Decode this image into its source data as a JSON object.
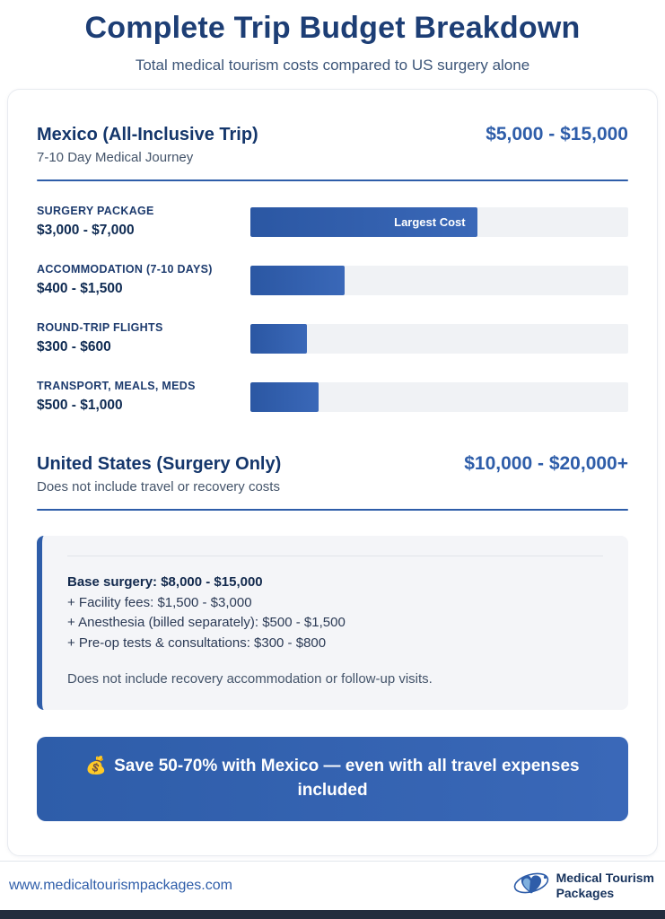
{
  "header": {
    "title": "Complete Trip Budget Breakdown",
    "subtitle": "Total medical tourism costs compared to US surgery alone"
  },
  "mexico": {
    "title": "Mexico (All-Inclusive Trip)",
    "price": "$5,000 - $15,000",
    "subtitle": "7-10 Day Medical Journey",
    "items": [
      {
        "label": "SURGERY PACKAGE",
        "value": "$3,000 - $7,000",
        "pct": 60,
        "badge": "Largest Cost"
      },
      {
        "label": "ACCOMMODATION (7-10 DAYS)",
        "value": "$400 - $1,500",
        "pct": 25
      },
      {
        "label": "ROUND-TRIP FLIGHTS",
        "value": "$300 - $600",
        "pct": 15
      },
      {
        "label": "TRANSPORT, MEALS, MEDS",
        "value": "$500 - $1,000",
        "pct": 18
      }
    ]
  },
  "us": {
    "title": "United States (Surgery Only)",
    "price": "$10,000 - $20,000+",
    "subtitle": "Does not include travel or recovery costs",
    "details": [
      "Base surgery: $8,000 - $15,000",
      "+ Facility fees: $1,500 - $3,000",
      "+ Anesthesia (billed separately): $500 - $1,500",
      "+ Pre-op tests & consultations: $300 - $800"
    ],
    "note": "Does not include recovery accommodation or follow-up visits."
  },
  "banner": {
    "icon": "💰",
    "text": "Save 50-70% with Mexico — even with all travel expenses included"
  },
  "footer": {
    "url": "www.medicaltourismpackages.com",
    "brand_line1": "Medical Tourism",
    "brand_line2": "Packages"
  },
  "chart_data": {
    "type": "bar",
    "orientation": "horizontal",
    "title": "Complete Trip Budget Breakdown",
    "subtitle": "Total medical tourism costs compared to US surgery alone",
    "grid": false,
    "legend": false,
    "groups": [
      {
        "name": "Mexico (All-Inclusive Trip)",
        "total_range_usd": [
          5000,
          15000
        ],
        "duration": "7-10 Day Medical Journey",
        "categories": [
          "Surgery Package",
          "Accommodation (7-10 days)",
          "Round-Trip Flights",
          "Transport, Meals, Meds"
        ],
        "ranges_usd": [
          [
            3000,
            7000
          ],
          [
            400,
            1500
          ],
          [
            300,
            600
          ],
          [
            500,
            1000
          ]
        ],
        "bar_fill_pct": [
          60,
          25,
          15,
          18
        ],
        "annotations": [
          {
            "category": "Surgery Package",
            "label": "Largest Cost"
          }
        ]
      },
      {
        "name": "United States (Surgery Only)",
        "total_range_usd": [
          10000,
          20000
        ],
        "total_range_label": "$10,000 - $20,000+",
        "components": [
          {
            "label": "Base surgery",
            "range_usd": [
              8000,
              15000
            ]
          },
          {
            "label": "Facility fees",
            "range_usd": [
              1500,
              3000
            ]
          },
          {
            "label": "Anesthesia (billed separately)",
            "range_usd": [
              500,
              1500
            ]
          },
          {
            "label": "Pre-op tests & consultations",
            "range_usd": [
              300,
              800
            ]
          }
        ],
        "note": "Does not include recovery accommodation or follow-up visits."
      }
    ],
    "conclusion": "Save 50-70% with Mexico — even with all travel expenses included"
  }
}
